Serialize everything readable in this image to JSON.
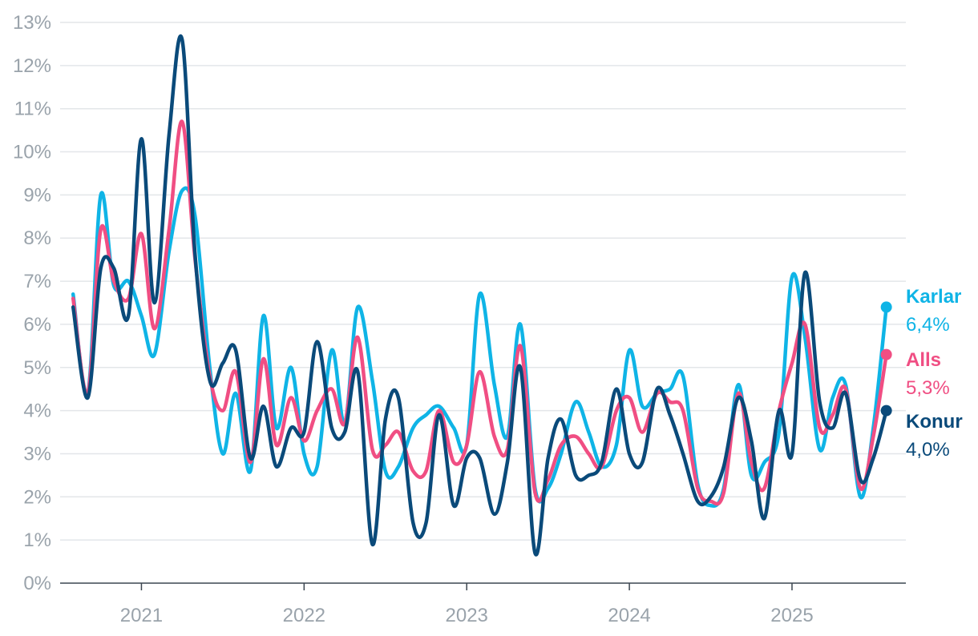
{
  "chart_data": {
    "type": "line",
    "title": "",
    "xlabel": "",
    "ylabel": "",
    "ylim": [
      0,
      13
    ],
    "xlim": [
      2020.5,
      2025.7
    ],
    "y_ticks": [
      0,
      1,
      2,
      3,
      4,
      5,
      6,
      7,
      8,
      9,
      10,
      11,
      12,
      13
    ],
    "y_tick_labels": [
      "0%",
      "1%",
      "2%",
      "3%",
      "4%",
      "5%",
      "6%",
      "7%",
      "8%",
      "9%",
      "10%",
      "11%",
      "12%",
      "13%"
    ],
    "x_ticks": [
      2021,
      2022,
      2023,
      2024,
      2025
    ],
    "x_tick_labels": [
      "2021",
      "2022",
      "2023",
      "2024",
      "2025"
    ],
    "grid": "horizontal",
    "legend": "end-of-line labels at right",
    "x": [
      2020.58,
      2020.67,
      2020.75,
      2020.83,
      2020.92,
      2021.0,
      2021.08,
      2021.17,
      2021.25,
      2021.33,
      2021.42,
      2021.5,
      2021.58,
      2021.67,
      2021.75,
      2021.83,
      2021.92,
      2022.0,
      2022.08,
      2022.17,
      2022.25,
      2022.33,
      2022.42,
      2022.5,
      2022.58,
      2022.67,
      2022.75,
      2022.83,
      2022.92,
      2023.0,
      2023.08,
      2023.17,
      2023.25,
      2023.33,
      2023.42,
      2023.5,
      2023.58,
      2023.67,
      2023.75,
      2023.83,
      2023.92,
      2024.0,
      2024.08,
      2024.17,
      2024.25,
      2024.33,
      2024.42,
      2024.5,
      2024.58,
      2024.67,
      2024.75,
      2024.83,
      2024.92,
      2025.0,
      2025.08,
      2025.17,
      2025.25,
      2025.33,
      2025.42,
      2025.5,
      2025.58
    ],
    "series": [
      {
        "name": "Karlar",
        "color": "#0fb4e6",
        "end_value_label": "6,4%",
        "values": [
          6.7,
          4.4,
          9.0,
          6.9,
          7.0,
          6.2,
          5.3,
          7.7,
          9.1,
          8.5,
          5.0,
          3.0,
          4.4,
          2.6,
          6.2,
          3.6,
          5.0,
          3.0,
          2.7,
          5.4,
          3.7,
          6.4,
          4.7,
          2.6,
          2.7,
          3.6,
          3.9,
          4.1,
          3.6,
          3.2,
          6.7,
          4.6,
          3.4,
          6.0,
          2.2,
          2.2,
          3.0,
          4.2,
          3.5,
          2.7,
          3.2,
          5.4,
          4.1,
          4.4,
          4.5,
          4.8,
          2.3,
          1.8,
          2.2,
          4.6,
          2.5,
          2.8,
          3.5,
          7.1,
          5.7,
          3.1,
          4.3,
          4.6,
          2.0,
          3.6,
          6.4
        ]
      },
      {
        "name": "Alls",
        "color": "#f04e83",
        "end_value_label": "5,3%",
        "values": [
          6.6,
          4.4,
          8.2,
          7.0,
          6.6,
          8.1,
          5.9,
          8.2,
          10.7,
          7.5,
          4.8,
          4.0,
          4.9,
          2.8,
          5.2,
          3.2,
          4.3,
          3.3,
          4.0,
          4.5,
          3.7,
          5.7,
          3.1,
          3.2,
          3.5,
          2.6,
          2.6,
          4.0,
          2.8,
          3.2,
          4.9,
          3.4,
          3.1,
          5.5,
          2.1,
          2.4,
          3.2,
          3.4,
          3.0,
          2.7,
          4.0,
          4.3,
          3.5,
          4.4,
          4.2,
          4.0,
          2.2,
          1.9,
          2.1,
          4.4,
          2.8,
          2.2,
          4.0,
          5.1,
          6.0,
          3.6,
          3.9,
          4.5,
          2.2,
          3.4,
          5.3
        ]
      },
      {
        "name": "Konur",
        "color": "#0a4a7a",
        "end_value_label": "4,0%",
        "values": [
          6.4,
          4.3,
          7.3,
          7.3,
          6.2,
          10.3,
          6.5,
          10.4,
          12.6,
          7.6,
          4.7,
          5.1,
          5.4,
          2.9,
          4.1,
          2.7,
          3.6,
          3.5,
          5.6,
          3.6,
          3.5,
          4.9,
          0.9,
          3.8,
          4.3,
          1.4,
          1.4,
          3.9,
          1.8,
          2.9,
          2.9,
          1.6,
          2.8,
          5.0,
          0.7,
          2.9,
          3.8,
          2.5,
          2.5,
          2.8,
          4.5,
          3.0,
          2.8,
          4.5,
          3.9,
          3.0,
          1.9,
          2.0,
          2.7,
          4.3,
          3.3,
          1.5,
          4.0,
          3.0,
          7.2,
          4.2,
          3.6,
          4.4,
          2.4,
          2.9,
          4.0
        ]
      }
    ]
  }
}
